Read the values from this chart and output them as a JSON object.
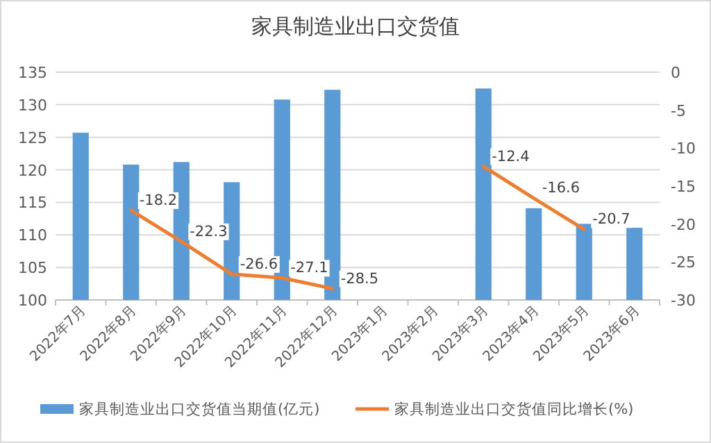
{
  "chart_data": {
    "type": "bar",
    "title": "家具制造业出口交货值",
    "categories": [
      "2022年7月",
      "2022年8月",
      "2022年9月",
      "2022年10月",
      "2022年11月",
      "2022年12月",
      "2023年1月",
      "2023年2月",
      "2023年3月",
      "2023年4月",
      "2023年5月",
      "2023年6月"
    ],
    "series": [
      {
        "name": "家具制造业出口交货值当期值(亿元)",
        "color": "#5b9bd5",
        "values": [
          125.7,
          120.8,
          121.2,
          118.1,
          130.8,
          132.3,
          null,
          null,
          132.5,
          114.1,
          111.7,
          111.1
        ]
      },
      {
        "name": "家具制造业出口交货值同比增长(%)",
        "type": "line",
        "axis": "y2",
        "color": "#ed7d31",
        "values": [
          null,
          -18.2,
          -22.3,
          -26.6,
          -27.1,
          -28.5,
          null,
          null,
          -12.4,
          -16.6,
          -20.7,
          null
        ],
        "value_labels": [
          null,
          "-18.2",
          "-22.3",
          "-26.6",
          "-27.1",
          "-28.5",
          null,
          null,
          "-12.4",
          "-16.6",
          "-20.7",
          null
        ]
      }
    ],
    "ylim": [
      100,
      135
    ],
    "yticks": [
      100,
      105,
      110,
      115,
      120,
      125,
      130,
      135
    ],
    "y2lim": [
      -30,
      0
    ],
    "y2ticks": [
      -30,
      -25,
      -20,
      -15,
      -10,
      -5,
      0
    ],
    "grid": "y",
    "legend": "bottom",
    "marker": "none",
    "line_style": "solid"
  }
}
